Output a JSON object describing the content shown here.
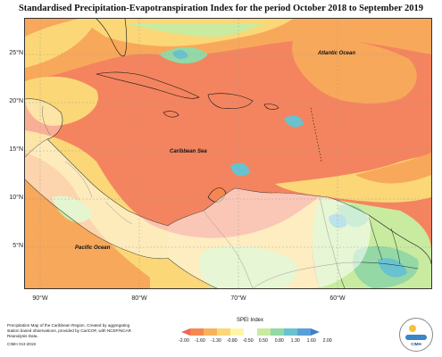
{
  "title": "Standardised Precipitation-Evapotranspiration Index for the period October 2018 to September 2019",
  "map": {
    "lat_labels": [
      "25°N",
      "20°N",
      "15°N",
      "10°N",
      "5°N"
    ],
    "lon_labels": [
      "90°W",
      "80°W",
      "70°W",
      "60°W"
    ],
    "ocean_labels": {
      "atlantic": "Atlantic Ocean",
      "caribbean": "Caribbean Sea",
      "pacific": "Pacific Ocean"
    }
  },
  "legend": {
    "title": "SPEI Index",
    "ticks": [
      "-2.00",
      "-1.60",
      "-1.30",
      "-0.80",
      "-0.50",
      "0.50",
      "0.80",
      "1.30",
      "1.60",
      "2.00"
    ],
    "colors": [
      "#f4645a",
      "#f6874f",
      "#f8b25b",
      "#fbd777",
      "#fdf6a8",
      "#c9eba0",
      "#93d8a5",
      "#68c2cf",
      "#5a9fd8",
      "#3f7fc7"
    ]
  },
  "footer": {
    "description": "Precipitation Map of the Caribbean Region. Created by aggregating station based observations, provided by CariCOF, with NCEP/NCAR Reanalysis Data.",
    "credit": "CIMH Oct-2019"
  },
  "logo": {
    "text": "CIMH"
  }
}
